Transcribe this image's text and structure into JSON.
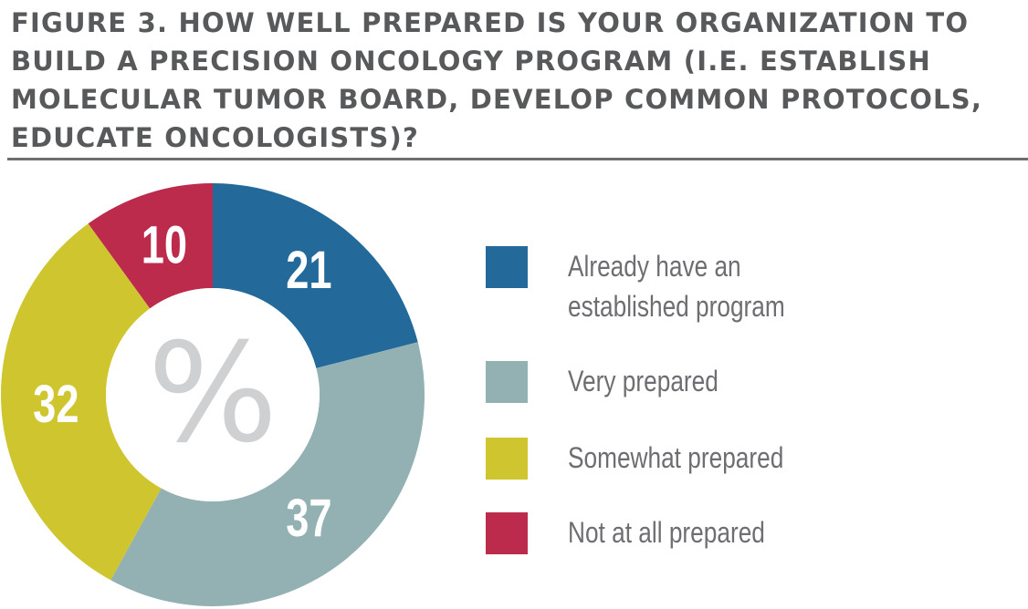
{
  "title": "FIGURE 3. HOW WELL PREPARED IS YOUR ORGANIZATION TO BUILD A PRECISION ONCOLOGY PROGRAM (I.E. ESTABLISH MOLECULAR TUMOR BOARD, DEVELOP COMMON PROTOCOLS, EDUCATE ONCOLOGISTS)?",
  "chart_data": {
    "type": "pie",
    "style": "donut",
    "center_label": "%",
    "slices": [
      {
        "label": "Already have an established program",
        "value": 21,
        "color": "#236a9b"
      },
      {
        "label": "Very prepared",
        "value": 37,
        "color": "#93b0b2"
      },
      {
        "label": "Somewhat prepared",
        "value": 32,
        "color": "#cfc52f"
      },
      {
        "label": "Not at all prepared",
        "value": 10,
        "color": "#bc2a4c"
      }
    ],
    "legend_position": "right",
    "data_labels": true
  }
}
